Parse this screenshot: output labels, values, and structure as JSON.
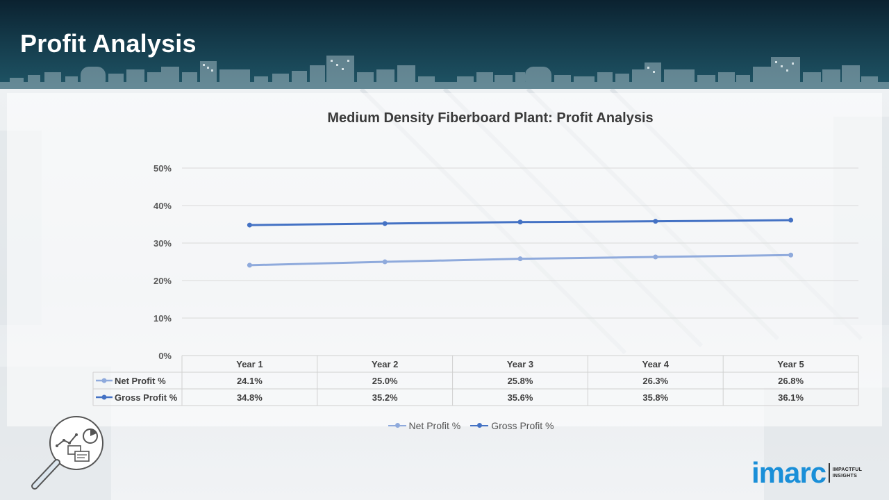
{
  "header": {
    "title": "Profit Analysis"
  },
  "chart_data": {
    "type": "line",
    "title": "Medium Density Fiberboard Plant: Profit Analysis",
    "categories": [
      "Year 1",
      "Year 2",
      "Year 3",
      "Year 4",
      "Year 5"
    ],
    "series": [
      {
        "name": "Net Profit %",
        "values": [
          24.1,
          25.0,
          25.8,
          26.3,
          26.8
        ],
        "labels": [
          "24.1%",
          "25.0%",
          "25.8%",
          "26.3%",
          "26.8%"
        ],
        "color": "#8faadc"
      },
      {
        "name": "Gross Profit %",
        "values": [
          34.8,
          35.2,
          35.6,
          35.8,
          36.1
        ],
        "labels": [
          "34.8%",
          "35.2%",
          "35.6%",
          "35.8%",
          "36.1%"
        ],
        "color": "#4472c4"
      }
    ],
    "ylim": [
      0,
      50
    ],
    "yticks": [
      0,
      10,
      20,
      30,
      40,
      50
    ],
    "ytick_labels": [
      "0%",
      "10%",
      "20%",
      "30%",
      "40%",
      "50%"
    ],
    "grid": true,
    "data_table": true,
    "legend_position": "bottom"
  },
  "brand": {
    "logo_word": "imarc",
    "tagline_1": "IMPACTFUL",
    "tagline_2": "INSIGHTS",
    "accent": "#1a8fd8"
  },
  "icons": {
    "badge": "magnifier-analytics-icon"
  }
}
